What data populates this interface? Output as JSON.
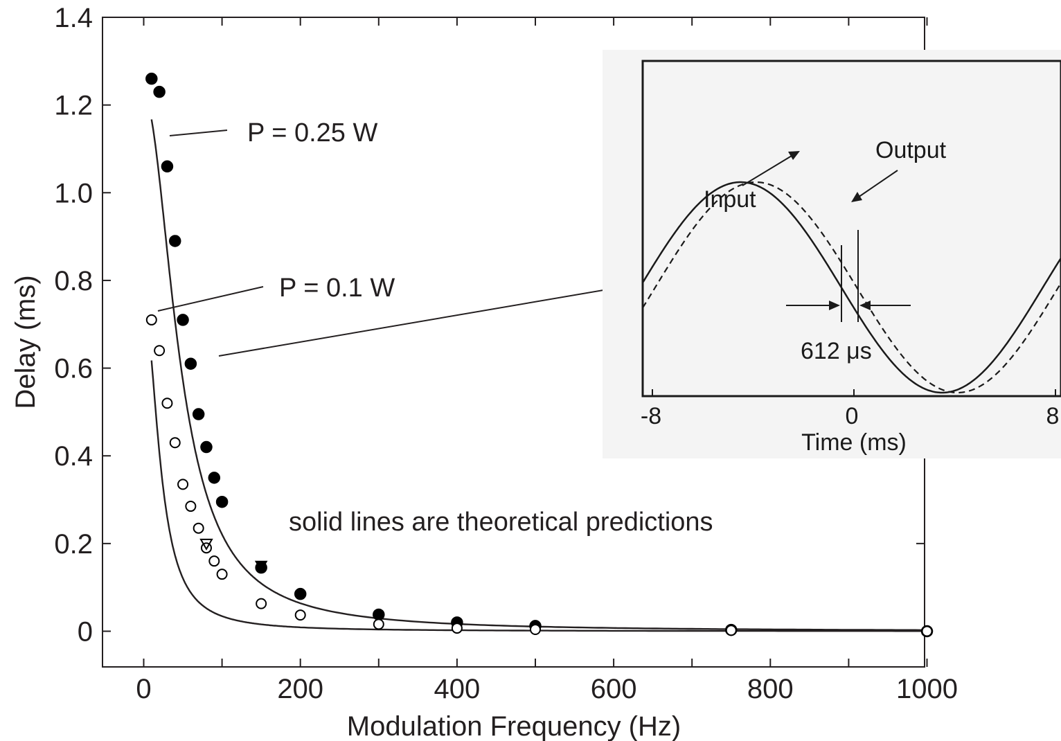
{
  "chart_data": [
    {
      "type": "scatter",
      "title": "",
      "xlabel": "Modulation Frequency (Hz)",
      "ylabel": "Delay (ms)",
      "xlim": [
        -50,
        1000
      ],
      "ylim": [
        -0.08,
        1.4
      ],
      "x_ticks": [
        "0",
        "200",
        "400",
        "600",
        "800",
        "1000"
      ],
      "y_ticks": [
        "0",
        "0.2",
        "0.4",
        "0.6",
        "0.8",
        "1.0",
        "1.2",
        "1.4"
      ],
      "grid": false,
      "series": [
        {
          "name": "P = 0.25 W",
          "marker": "filled-circle",
          "x": [
            10,
            20,
            30,
            40,
            50,
            60,
            70,
            80,
            90,
            100,
            150,
            200,
            300,
            400,
            500,
            750,
            1000
          ],
          "y": [
            1.26,
            1.23,
            1.06,
            0.89,
            0.71,
            0.61,
            0.495,
            0.42,
            0.35,
            0.295,
            0.145,
            0.085,
            0.038,
            0.02,
            0.012,
            0.003,
            0.0
          ]
        },
        {
          "name": "P = 0.1 W",
          "marker": "open-circle",
          "x": [
            10,
            20,
            30,
            40,
            50,
            60,
            70,
            80,
            90,
            100,
            150,
            200,
            300,
            400,
            500,
            750,
            1000
          ],
          "y": [
            0.71,
            0.64,
            0.52,
            0.43,
            0.335,
            0.285,
            0.235,
            0.19,
            0.16,
            0.13,
            0.063,
            0.037,
            0.016,
            0.007,
            0.004,
            0.002,
            0.0
          ]
        },
        {
          "marker": "open-triangle",
          "x": [
            80
          ],
          "y": [
            0.2
          ]
        },
        {
          "marker": "filled-triangle",
          "x": [
            150
          ],
          "y": [
            0.15
          ]
        }
      ],
      "fits": [
        {
          "for": "P = 0.25 W",
          "amplitude": 1.22,
          "x_scale": 47,
          "x_start": 10,
          "x_end": 1000
        },
        {
          "for": "P = 0.1 W",
          "amplitude": 0.745,
          "x_scale": 22,
          "x_start": 10,
          "x_end": 1000
        }
      ],
      "annotations": {
        "p025": "P = 0.25 W",
        "p01": "P = 0.1 W",
        "note": "solid lines are theoretical predictions"
      }
    },
    {
      "type": "line",
      "title": "",
      "xlabel": "Time (ms)",
      "ylabel": "",
      "xlim": [
        -8,
        8
      ],
      "x_ticks": [
        "-8",
        "0",
        "8"
      ],
      "grid": false,
      "series": [
        {
          "name": "Input",
          "style": "solid",
          "period_ms": 16,
          "phase_ms": 0
        },
        {
          "name": "Output",
          "style": "dashed",
          "period_ms": 16,
          "phase_ms": 0.612
        }
      ],
      "annotations": {
        "input": "Input",
        "output": "Output",
        "delay": "612 μs"
      }
    }
  ]
}
